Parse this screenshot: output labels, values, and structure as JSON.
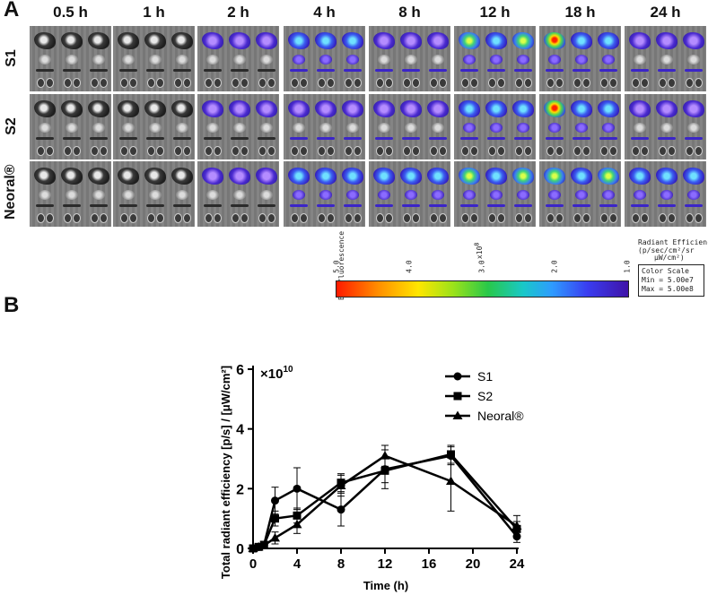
{
  "panel_a": {
    "letter": "A",
    "time_points": [
      "0.5 h",
      "1 h",
      "2 h",
      "4 h",
      "8 h",
      "12 h",
      "18 h",
      "24 h"
    ],
    "row_labels": [
      "S1",
      "S2",
      "Neoral®"
    ]
  },
  "colorbar": {
    "title": "Epi-fluorescence",
    "multiplier": "x10",
    "multiplier_exp": "8",
    "ticks": [
      "5.0",
      "4.0",
      "3.0",
      "2.0",
      "1.0"
    ],
    "units_title": "Radiant Efficiency",
    "units_line1": "(p/sec/cm²/sr",
    "units_line2": "µW/cm²)",
    "scale_title": "Color Scale",
    "scale_min": "Min = 5.00e7",
    "scale_max": "Max = 5.00e8"
  },
  "panel_b": {
    "letter": "B"
  },
  "chart_data": {
    "type": "line",
    "title": "",
    "xlabel": "Time (h)",
    "ylabel": "Total radiant efficiency [p/s] / [μW/cm²]",
    "multiplier_label": "×10",
    "multiplier_exp": "10",
    "xlim": [
      0,
      24
    ],
    "ylim": [
      0,
      6
    ],
    "xticks": [
      0,
      4,
      8,
      12,
      16,
      20,
      24
    ],
    "yticks": [
      0,
      2,
      4,
      6
    ],
    "x": [
      0,
      0.5,
      1,
      2,
      4,
      8,
      12,
      18,
      24
    ],
    "series": [
      {
        "name": "S1",
        "marker": "circle",
        "values": [
          0,
          0.05,
          0.12,
          1.6,
          2.0,
          1.3,
          2.65,
          3.1,
          0.4
        ],
        "errors": [
          0,
          0.03,
          0.05,
          0.45,
          0.7,
          0.55,
          0.65,
          0.3,
          0.2
        ]
      },
      {
        "name": "S2",
        "marker": "square",
        "values": [
          0,
          0.05,
          0.12,
          1.0,
          1.1,
          2.2,
          2.6,
          3.15,
          0.65
        ],
        "errors": [
          0,
          0.03,
          0.05,
          0.25,
          0.25,
          0.3,
          0.4,
          0.3,
          0.25
        ]
      },
      {
        "name": "Neoral®",
        "marker": "triangle",
        "values": [
          0,
          0.05,
          0.1,
          0.35,
          0.8,
          2.1,
          3.1,
          2.25,
          0.75
        ],
        "errors": [
          0,
          0.03,
          0.05,
          0.2,
          0.3,
          0.35,
          0.35,
          1.0,
          0.35
        ]
      }
    ],
    "legend_position": "top-right"
  }
}
